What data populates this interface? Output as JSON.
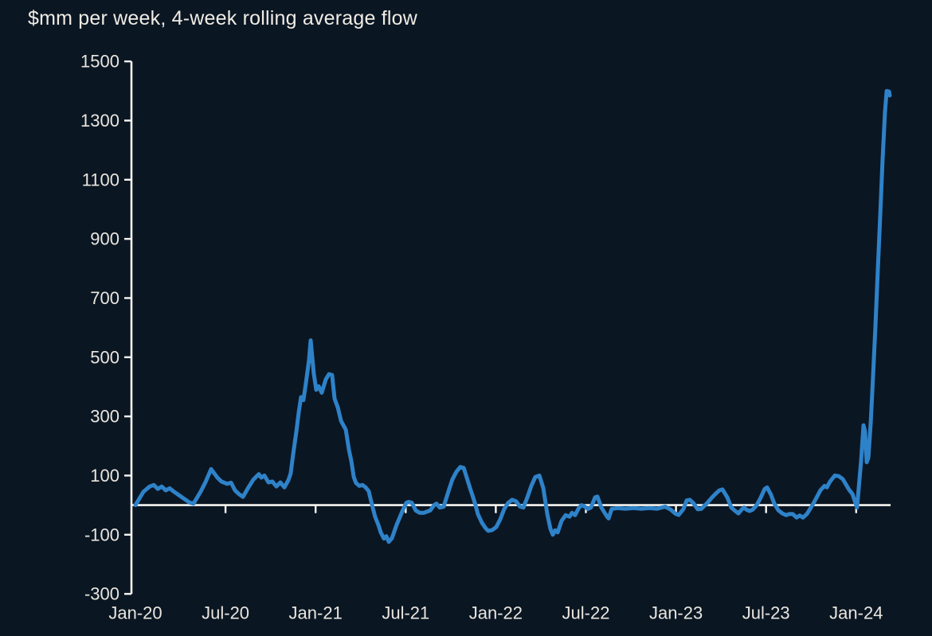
{
  "title": "$mm per week, 4-week rolling average flow",
  "colors": {
    "background": "#0b1623",
    "axis": "#f7f6f2",
    "tick_text": "#e9e6df",
    "title_text": "#efece4",
    "line": "#2e82c8"
  },
  "chart_data": {
    "type": "line",
    "title": "$mm per week, 4-week rolling average flow",
    "xlabel": "",
    "ylabel": "$mm per week, 4-week rolling average flow",
    "x_unit": "months since Jan-2020",
    "ylim": [
      -300,
      1500
    ],
    "y_ticks": [
      -300,
      -100,
      100,
      300,
      500,
      700,
      900,
      1100,
      1300,
      1500
    ],
    "x_ticks": [
      {
        "m": 0,
        "label": "Jan-20"
      },
      {
        "m": 6,
        "label": "Jul-20"
      },
      {
        "m": 12,
        "label": "Jan-21"
      },
      {
        "m": 18,
        "label": "Jul-21"
      },
      {
        "m": 24,
        "label": "Jan-22"
      },
      {
        "m": 30,
        "label": "Jul-22"
      },
      {
        "m": 36,
        "label": "Jan-23"
      },
      {
        "m": 42,
        "label": "Jul-23"
      },
      {
        "m": 48,
        "label": "Jan-24"
      }
    ],
    "grid": false,
    "legend": null,
    "zero_axis_line": true,
    "series": [
      {
        "name": "4-week rolling average flow ($mm per week)",
        "points": [
          [
            0,
            0
          ],
          [
            0.53,
            45
          ],
          [
            0.95,
            63
          ],
          [
            1.22,
            68
          ],
          [
            1.49,
            55
          ],
          [
            1.75,
            63
          ],
          [
            2.02,
            50
          ],
          [
            2.28,
            57
          ],
          [
            2.55,
            46
          ],
          [
            2.92,
            33
          ],
          [
            3.29,
            20
          ],
          [
            3.61,
            9
          ],
          [
            3.87,
            5
          ],
          [
            4.35,
            46
          ],
          [
            4.67,
            78
          ],
          [
            5.04,
            122
          ],
          [
            5.46,
            93
          ],
          [
            5.73,
            80
          ],
          [
            6.1,
            72
          ],
          [
            6.37,
            76
          ],
          [
            6.63,
            50
          ],
          [
            6.9,
            37
          ],
          [
            7.16,
            28
          ],
          [
            7.53,
            60
          ],
          [
            7.85,
            86
          ],
          [
            8.22,
            105
          ],
          [
            8.38,
            93
          ],
          [
            8.59,
            100
          ],
          [
            8.86,
            77
          ],
          [
            9.12,
            80
          ],
          [
            9.39,
            63
          ],
          [
            9.65,
            77
          ],
          [
            9.92,
            60
          ],
          [
            10.19,
            85
          ],
          [
            10.34,
            107
          ],
          [
            10.5,
            170
          ],
          [
            10.72,
            250
          ],
          [
            10.88,
            315
          ],
          [
            11.03,
            365
          ],
          [
            11.19,
            355
          ],
          [
            11.35,
            410
          ],
          [
            11.56,
            490
          ],
          [
            11.67,
            557
          ],
          [
            11.88,
            445
          ],
          [
            12.04,
            390
          ],
          [
            12.2,
            402
          ],
          [
            12.41,
            380
          ],
          [
            12.68,
            425
          ],
          [
            12.89,
            443
          ],
          [
            13.1,
            440
          ],
          [
            13.26,
            360
          ],
          [
            13.48,
            330
          ],
          [
            13.69,
            285
          ],
          [
            13.85,
            270
          ],
          [
            14.01,
            255
          ],
          [
            14.22,
            188
          ],
          [
            14.38,
            148
          ],
          [
            14.54,
            95
          ],
          [
            14.69,
            75
          ],
          [
            14.91,
            65
          ],
          [
            15.12,
            68
          ],
          [
            15.33,
            60
          ],
          [
            15.54,
            47
          ],
          [
            15.76,
            0
          ],
          [
            15.97,
            -40
          ],
          [
            16.18,
            -67
          ],
          [
            16.34,
            -92
          ],
          [
            16.55,
            -113
          ],
          [
            16.71,
            -105
          ],
          [
            16.87,
            -124
          ],
          [
            17.08,
            -112
          ],
          [
            17.4,
            -66
          ],
          [
            17.77,
            -21
          ],
          [
            18.04,
            8
          ],
          [
            18.2,
            11
          ],
          [
            18.41,
            8
          ],
          [
            18.67,
            -18
          ],
          [
            18.94,
            -26
          ],
          [
            19.2,
            -26
          ],
          [
            19.47,
            -21
          ],
          [
            19.63,
            -18
          ],
          [
            19.89,
            0
          ],
          [
            20.05,
            5
          ],
          [
            20.27,
            -8
          ],
          [
            20.53,
            -5
          ],
          [
            20.85,
            47
          ],
          [
            21.11,
            87
          ],
          [
            21.38,
            113
          ],
          [
            21.64,
            129
          ],
          [
            21.86,
            126
          ],
          [
            22.12,
            84
          ],
          [
            22.28,
            58
          ],
          [
            22.44,
            34
          ],
          [
            22.65,
            0
          ],
          [
            22.81,
            -31
          ],
          [
            23.08,
            -60
          ],
          [
            23.34,
            -79
          ],
          [
            23.5,
            -87
          ],
          [
            23.77,
            -84
          ],
          [
            24.03,
            -74
          ],
          [
            24.3,
            -47
          ],
          [
            24.56,
            -13
          ],
          [
            24.83,
            8
          ],
          [
            25.09,
            18
          ],
          [
            25.36,
            13
          ],
          [
            25.62,
            -5
          ],
          [
            25.84,
            -8
          ],
          [
            26.1,
            26
          ],
          [
            26.37,
            66
          ],
          [
            26.63,
            95
          ],
          [
            26.9,
            100
          ],
          [
            27.16,
            58
          ],
          [
            27.43,
            -31
          ],
          [
            27.64,
            -80
          ],
          [
            27.8,
            -100
          ],
          [
            27.96,
            -85
          ],
          [
            28.12,
            -92
          ],
          [
            28.38,
            -53
          ],
          [
            28.65,
            -34
          ],
          [
            28.91,
            -39
          ],
          [
            29.07,
            -26
          ],
          [
            29.28,
            -34
          ],
          [
            29.55,
            -8
          ],
          [
            29.71,
            0
          ],
          [
            29.87,
            -3
          ],
          [
            30.13,
            -13
          ],
          [
            30.34,
            -8
          ],
          [
            30.61,
            26
          ],
          [
            30.77,
            29
          ],
          [
            31.03,
            -8
          ],
          [
            31.41,
            -39
          ],
          [
            31.51,
            -45
          ],
          [
            31.72,
            -13
          ],
          [
            32.1,
            -10
          ],
          [
            32.63,
            -12
          ],
          [
            33.16,
            -10
          ],
          [
            33.69,
            -12
          ],
          [
            34.22,
            -10
          ],
          [
            34.75,
            -12
          ],
          [
            35.28,
            -5
          ],
          [
            35.65,
            -15
          ],
          [
            35.97,
            -29
          ],
          [
            36.18,
            -33
          ],
          [
            36.5,
            -13
          ],
          [
            36.71,
            16
          ],
          [
            36.92,
            18
          ],
          [
            37.14,
            8
          ],
          [
            37.45,
            -14
          ],
          [
            37.67,
            -13
          ],
          [
            38.04,
            5
          ],
          [
            38.36,
            24
          ],
          [
            38.67,
            40
          ],
          [
            38.89,
            50
          ],
          [
            39.1,
            53
          ],
          [
            39.42,
            26
          ],
          [
            39.68,
            -8
          ],
          [
            39.95,
            -20
          ],
          [
            40.16,
            -28
          ],
          [
            40.37,
            -15
          ],
          [
            40.53,
            -8
          ],
          [
            40.69,
            -15
          ],
          [
            40.9,
            -20
          ],
          [
            41.11,
            -15
          ],
          [
            41.38,
            0
          ],
          [
            41.64,
            25
          ],
          [
            41.91,
            55
          ],
          [
            42.07,
            60
          ],
          [
            42.33,
            35
          ],
          [
            42.55,
            5
          ],
          [
            42.81,
            -17
          ],
          [
            43.08,
            -28
          ],
          [
            43.34,
            -34
          ],
          [
            43.55,
            -30
          ],
          [
            43.77,
            -30
          ],
          [
            44.03,
            -42
          ],
          [
            44.24,
            -35
          ],
          [
            44.46,
            -42
          ],
          [
            44.72,
            -30
          ],
          [
            45.09,
            0
          ],
          [
            45.36,
            25
          ],
          [
            45.62,
            50
          ],
          [
            45.89,
            65
          ],
          [
            46.05,
            60
          ],
          [
            46.26,
            80
          ],
          [
            46.58,
            100
          ],
          [
            46.84,
            98
          ],
          [
            47.11,
            88
          ],
          [
            47.32,
            70
          ],
          [
            47.53,
            52
          ],
          [
            47.75,
            38
          ],
          [
            47.9,
            15
          ],
          [
            48.06,
            -8
          ],
          [
            48.33,
            150
          ],
          [
            48.49,
            270
          ],
          [
            48.59,
            250
          ],
          [
            48.7,
            145
          ],
          [
            48.81,
            160
          ],
          [
            48.97,
            280
          ],
          [
            49.12,
            430
          ],
          [
            49.28,
            600
          ],
          [
            49.44,
            790
          ],
          [
            49.6,
            980
          ],
          [
            49.76,
            1170
          ],
          [
            49.92,
            1330
          ],
          [
            50.03,
            1400
          ],
          [
            50.19,
            1398
          ],
          [
            50.24,
            1385
          ]
        ]
      }
    ]
  }
}
